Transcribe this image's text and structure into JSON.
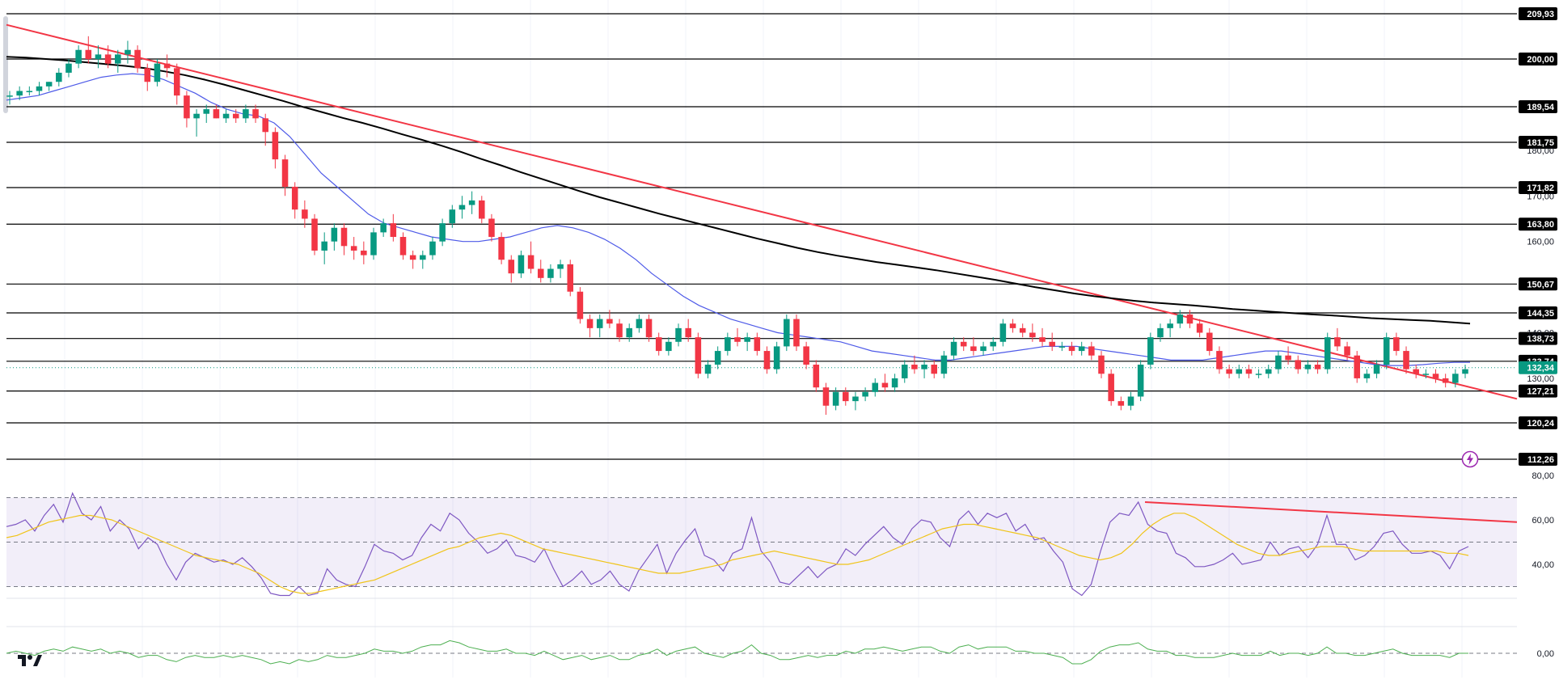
{
  "chart_data": {
    "type": "candlestick",
    "title": "",
    "price_scale": {
      "min": 112.26,
      "max": 209.93,
      "ticks": [
        "180,00",
        "170,00",
        "160,00",
        "140,00",
        "130,00"
      ]
    },
    "current_price": "132,34",
    "levels": [
      "209,93",
      "200,00",
      "189,54",
      "181,75",
      "171,82",
      "163,80",
      "150,67",
      "144,35",
      "138,73",
      "133,74",
      "127,21",
      "120,24",
      "112,26"
    ],
    "candles_ohlc": [
      [
        192,
        193,
        190,
        192
      ],
      [
        192,
        194,
        191,
        193
      ],
      [
        193,
        194,
        192,
        193
      ],
      [
        193,
        195,
        192,
        194
      ],
      [
        194,
        195,
        193,
        195
      ],
      [
        195,
        198,
        194,
        197
      ],
      [
        197,
        200,
        196,
        199
      ],
      [
        199,
        203,
        198,
        202
      ],
      [
        202,
        205,
        199,
        200
      ],
      [
        200,
        203,
        198,
        201
      ],
      [
        201,
        203,
        198,
        199
      ],
      [
        199,
        202,
        197,
        201
      ],
      [
        201,
        204,
        199,
        202
      ],
      [
        202,
        203,
        197,
        198
      ],
      [
        198,
        199,
        193,
        195
      ],
      [
        195,
        200,
        194,
        199
      ],
      [
        199,
        201,
        196,
        198
      ],
      [
        198,
        199,
        190,
        192
      ],
      [
        192,
        193,
        185,
        187
      ],
      [
        187,
        189,
        183,
        188
      ],
      [
        188,
        190,
        186,
        189
      ],
      [
        189,
        190,
        187,
        187
      ],
      [
        187,
        189,
        186,
        188
      ],
      [
        188,
        189,
        186,
        187
      ],
      [
        187,
        190,
        186,
        189
      ],
      [
        189,
        190,
        186,
        187
      ],
      [
        187,
        188,
        181,
        184
      ],
      [
        184,
        185,
        176,
        178
      ],
      [
        178,
        179,
        170,
        172
      ],
      [
        172,
        173,
        165,
        167
      ],
      [
        167,
        169,
        163,
        165
      ],
      [
        165,
        166,
        157,
        158
      ],
      [
        158,
        162,
        155,
        160
      ],
      [
        160,
        164,
        158,
        163
      ],
      [
        163,
        164,
        157,
        159
      ],
      [
        159,
        161,
        156,
        158
      ],
      [
        158,
        160,
        155,
        157
      ],
      [
        157,
        163,
        156,
        162
      ],
      [
        162,
        165,
        161,
        164
      ],
      [
        164,
        166,
        160,
        161
      ],
      [
        161,
        162,
        156,
        157
      ],
      [
        157,
        158,
        154,
        156
      ],
      [
        156,
        158,
        154,
        157
      ],
      [
        157,
        161,
        156,
        160
      ],
      [
        160,
        165,
        159,
        164
      ],
      [
        164,
        168,
        163,
        167
      ],
      [
        167,
        170,
        165,
        168
      ],
      [
        168,
        171,
        166,
        169
      ],
      [
        169,
        170,
        164,
        165
      ],
      [
        165,
        166,
        160,
        161
      ],
      [
        161,
        162,
        155,
        156
      ],
      [
        156,
        157,
        151,
        153
      ],
      [
        153,
        158,
        152,
        157
      ],
      [
        157,
        160,
        153,
        154
      ],
      [
        154,
        156,
        151,
        152
      ],
      [
        152,
        155,
        151,
        154
      ],
      [
        154,
        156,
        152,
        155
      ],
      [
        155,
        156,
        148,
        149
      ],
      [
        149,
        150,
        142,
        143
      ],
      [
        143,
        144,
        139,
        141
      ],
      [
        141,
        144,
        139,
        143
      ],
      [
        143,
        145,
        141,
        142
      ],
      [
        142,
        143,
        138,
        139
      ],
      [
        139,
        142,
        138,
        141
      ],
      [
        141,
        144,
        140,
        143
      ],
      [
        143,
        144,
        138,
        139
      ],
      [
        139,
        140,
        135,
        136
      ],
      [
        136,
        139,
        135,
        138
      ],
      [
        138,
        142,
        137,
        141
      ],
      [
        141,
        143,
        138,
        139
      ],
      [
        139,
        140,
        130,
        131
      ],
      [
        131,
        134,
        130,
        133
      ],
      [
        133,
        137,
        132,
        136
      ],
      [
        136,
        140,
        135,
        139
      ],
      [
        139,
        141,
        137,
        138
      ],
      [
        138,
        140,
        136,
        139
      ],
      [
        139,
        140,
        135,
        136
      ],
      [
        136,
        137,
        131,
        132
      ],
      [
        132,
        138,
        131,
        137
      ],
      [
        137,
        144,
        136,
        143
      ],
      [
        143,
        144,
        136,
        137
      ],
      [
        137,
        138,
        132,
        133
      ],
      [
        133,
        134,
        127,
        128
      ],
      [
        128,
        129,
        122,
        124
      ],
      [
        124,
        128,
        123,
        127
      ],
      [
        127,
        128,
        124,
        125
      ],
      [
        125,
        127,
        123,
        126
      ],
      [
        126,
        128,
        125,
        127
      ],
      [
        127,
        130,
        126,
        129
      ],
      [
        129,
        131,
        127,
        128
      ],
      [
        128,
        131,
        127,
        130
      ],
      [
        130,
        134,
        129,
        133
      ],
      [
        133,
        135,
        131,
        132
      ],
      [
        132,
        134,
        130,
        133
      ],
      [
        133,
        134,
        130,
        131
      ],
      [
        131,
        136,
        130,
        135
      ],
      [
        135,
        139,
        134,
        138
      ],
      [
        138,
        139,
        136,
        137
      ],
      [
        137,
        139,
        135,
        136
      ],
      [
        136,
        138,
        135,
        137
      ],
      [
        137,
        139,
        136,
        138
      ],
      [
        138,
        143,
        137,
        142
      ],
      [
        142,
        143,
        140,
        141
      ],
      [
        141,
        142,
        139,
        140
      ],
      [
        140,
        142,
        138,
        139
      ],
      [
        139,
        141,
        137,
        138
      ],
      [
        138,
        140,
        136,
        137
      ],
      [
        137,
        138,
        136,
        137
      ],
      [
        137,
        138,
        135,
        136
      ],
      [
        136,
        138,
        135,
        137
      ],
      [
        137,
        138,
        134,
        135
      ],
      [
        135,
        136,
        130,
        131
      ],
      [
        131,
        132,
        124,
        125
      ],
      [
        125,
        126,
        123,
        124
      ],
      [
        124,
        127,
        123,
        126
      ],
      [
        126,
        134,
        125,
        133
      ],
      [
        133,
        140,
        132,
        139
      ],
      [
        139,
        142,
        138,
        141
      ],
      [
        141,
        143,
        139,
        142
      ],
      [
        142,
        145,
        141,
        144
      ],
      [
        144,
        145,
        141,
        142
      ],
      [
        142,
        143,
        139,
        140
      ],
      [
        140,
        141,
        135,
        136
      ],
      [
        136,
        137,
        131,
        132
      ],
      [
        132,
        133,
        130,
        131
      ],
      [
        131,
        133,
        130,
        132
      ],
      [
        132,
        133,
        130,
        131
      ],
      [
        131,
        132,
        130,
        131
      ],
      [
        131,
        133,
        130,
        132
      ],
      [
        132,
        136,
        131,
        135
      ],
      [
        135,
        137,
        133,
        134
      ],
      [
        134,
        135,
        131,
        132
      ],
      [
        132,
        134,
        131,
        133
      ],
      [
        133,
        134,
        131,
        132
      ],
      [
        132,
        140,
        131,
        139
      ],
      [
        139,
        141,
        136,
        137
      ],
      [
        137,
        138,
        134,
        135
      ],
      [
        135,
        136,
        129,
        130
      ],
      [
        130,
        132,
        129,
        131
      ],
      [
        131,
        134,
        130,
        133
      ],
      [
        133,
        140,
        132,
        139
      ],
      [
        139,
        140,
        135,
        136
      ],
      [
        136,
        137,
        131,
        132
      ],
      [
        132,
        133,
        130,
        131
      ],
      [
        131,
        132,
        130,
        131
      ],
      [
        131,
        132,
        129,
        130
      ],
      [
        130,
        131,
        128,
        129
      ],
      [
        129,
        132,
        128,
        131
      ],
      [
        131,
        133,
        130,
        132
      ]
    ],
    "sma_blue": [
      191,
      191.5,
      192,
      193,
      194,
      195,
      196,
      196.5,
      196.8,
      196.5,
      195.5,
      194,
      192.5,
      190.5,
      189,
      188,
      187.5,
      186,
      183,
      179,
      175,
      172,
      169,
      166,
      164,
      163,
      162,
      161,
      160.5,
      160,
      160,
      160.5,
      161,
      162,
      163,
      163.5,
      163,
      162,
      160.5,
      158.5,
      156,
      153,
      150.5,
      148,
      146,
      144.5,
      143,
      142,
      141,
      140,
      139.5,
      139,
      138.5,
      138,
      137,
      136,
      135.5,
      135,
      134.5,
      134,
      134,
      134.5,
      135,
      135.5,
      136,
      136.5,
      137,
      137,
      137,
      136.5,
      136,
      135.5,
      135,
      134.5,
      134,
      134,
      134,
      134.5,
      135,
      135.5,
      136,
      136,
      135.5,
      135,
      134.5,
      134,
      133.5,
      133,
      132.8,
      132.8,
      133,
      133.3,
      133.5,
      133.5
    ],
    "sma_black": [
      200.5,
      200.3,
      200,
      199.7,
      199.3,
      198.9,
      198.5,
      198,
      197.3,
      196.5,
      195.5,
      194.4,
      193.2,
      192,
      190.8,
      189.5,
      188.3,
      187.1,
      186,
      184.8,
      183.5,
      182.3,
      181,
      179.6,
      178.1,
      176.7,
      175.2,
      173.8,
      172.4,
      171,
      169.7,
      168.5,
      167.3,
      166.1,
      165,
      163.9,
      162.8,
      161.7,
      160.6,
      159.6,
      158.6,
      157.7,
      156.9,
      156.2,
      155.5,
      154.9,
      154.3,
      153.7,
      153,
      152.3,
      151.6,
      150.8,
      150,
      149.3,
      148.6,
      148,
      147.5,
      147,
      146.6,
      146.3,
      146,
      145.6,
      145.2,
      144.9,
      144.6,
      144.3,
      144,
      143.8,
      143.5,
      143.2,
      143,
      142.8,
      142.6,
      142.3,
      142
    ],
    "trendline_price": {
      "start": 207.5,
      "end": 125.5
    },
    "rsi": {
      "range": [
        20,
        80
      ],
      "ticks": [
        "80,00",
        "60,00",
        "40,00"
      ],
      "band": [
        30,
        70
      ],
      "mid": 50,
      "values": [
        57,
        58,
        60,
        55,
        62,
        67,
        59,
        72,
        63,
        60,
        66,
        55,
        60,
        56,
        47,
        52,
        49,
        40,
        33,
        41,
        45,
        43,
        41,
        42,
        40,
        43,
        39,
        34,
        27,
        24,
        22,
        30,
        24,
        27,
        38,
        33,
        31,
        30,
        39,
        49,
        46,
        45,
        42,
        44,
        52,
        58,
        55,
        63,
        60,
        54,
        50,
        45,
        47,
        51,
        44,
        43,
        41,
        47,
        38,
        30,
        33,
        37,
        31,
        33,
        37,
        31,
        28,
        37,
        43,
        49,
        36,
        45,
        51,
        56,
        44,
        42,
        37,
        45,
        47,
        61,
        46,
        41,
        32,
        31,
        35,
        39,
        34,
        38,
        40,
        47,
        44,
        49,
        53,
        57,
        52,
        49,
        56,
        60,
        59,
        52,
        48,
        60,
        64,
        58,
        63,
        61,
        63,
        55,
        58,
        51,
        52,
        46,
        41,
        29,
        26,
        31,
        46,
        59,
        63,
        62,
        68,
        58,
        55,
        54,
        45,
        43,
        39,
        39,
        40,
        42,
        45,
        40,
        41,
        42,
        50,
        44,
        47,
        48,
        43,
        49,
        62,
        49,
        49,
        42,
        44,
        48,
        54,
        55,
        49,
        45,
        45,
        46,
        44,
        38,
        46,
        48
      ],
      "ma_values": [
        52,
        53,
        55,
        57,
        59,
        60,
        61,
        62,
        62,
        61,
        60,
        58,
        56,
        54,
        52,
        50,
        48,
        46,
        44,
        43,
        42,
        41,
        40,
        38,
        36,
        33,
        30,
        28,
        27,
        27,
        28,
        29,
        30,
        31,
        32,
        33,
        35,
        37,
        39,
        41,
        43,
        45,
        47,
        48,
        50,
        52,
        53,
        54,
        53,
        51,
        49,
        47,
        46,
        45,
        44,
        43,
        42,
        41,
        40,
        39,
        38,
        37,
        36,
        36,
        36,
        37,
        38,
        39,
        40,
        42,
        43,
        44,
        45,
        46,
        45,
        44,
        43,
        42,
        41,
        40,
        40,
        41,
        42,
        44,
        46,
        48,
        50,
        52,
        54,
        56,
        57,
        58,
        58,
        57,
        56,
        55,
        54,
        53,
        52,
        50,
        48,
        46,
        44,
        43,
        42,
        43,
        45,
        49,
        54,
        58,
        61,
        63,
        63,
        61,
        58,
        55,
        52,
        49,
        47,
        45,
        44,
        44,
        45,
        46,
        47,
        48,
        48,
        48,
        47,
        46,
        46,
        46,
        46,
        46,
        46,
        46,
        46,
        45,
        45,
        44
      ],
      "trendline": {
        "start": 68,
        "end": 59
      }
    },
    "oscillator": {
      "zero_label": "0,00",
      "values": [
        0,
        1,
        0,
        -1,
        1,
        2,
        1,
        3,
        2,
        1,
        2,
        0,
        1,
        0,
        -2,
        -1,
        -1,
        -3,
        -4,
        -2,
        -1,
        -2,
        -2,
        -1,
        -2,
        -1,
        -2,
        -3,
        -5,
        -4,
        -5,
        -3,
        -4,
        -3,
        -1,
        -2,
        -2,
        -1,
        0,
        2,
        1,
        1,
        0,
        1,
        3,
        4,
        4,
        6,
        5,
        3,
        2,
        1,
        1,
        2,
        0,
        0,
        -1,
        1,
        -1,
        -3,
        -2,
        -1,
        -3,
        -2,
        -1,
        -3,
        -3,
        -1,
        0,
        2,
        -1,
        1,
        2,
        3,
        0,
        -1,
        -2,
        0,
        1,
        4,
        0,
        -1,
        -3,
        -3,
        -2,
        -1,
        -2,
        -1,
        -1,
        1,
        0,
        2,
        2,
        3,
        2,
        1,
        2,
        3,
        3,
        1,
        0,
        3,
        4,
        2,
        3,
        3,
        3,
        1,
        1,
        0,
        0,
        -1,
        -2,
        -5,
        -5,
        -3,
        1,
        3,
        4,
        4,
        5,
        2,
        1,
        1,
        -1,
        -1,
        -2,
        -2,
        -2,
        -1,
        0,
        -1,
        -1,
        -1,
        1,
        -1,
        0,
        0,
        -1,
        0,
        3,
        0,
        0,
        -1,
        -1,
        0,
        1,
        2,
        0,
        -1,
        -1,
        -1,
        -1,
        -2,
        0,
        0
      ]
    }
  },
  "icons": {
    "logo": "tradingview-logo-icon",
    "alert": "lightning-icon"
  },
  "colors": {
    "up": "#089981",
    "down": "#f23645",
    "trend": "#f23645",
    "sma_blue": "#4e5ae8",
    "sma_black": "#000000",
    "rsi": "#7e57c2",
    "rsi_ma": "#f0c419",
    "osc": "#4caf50",
    "current_price_bg": "#089981"
  }
}
